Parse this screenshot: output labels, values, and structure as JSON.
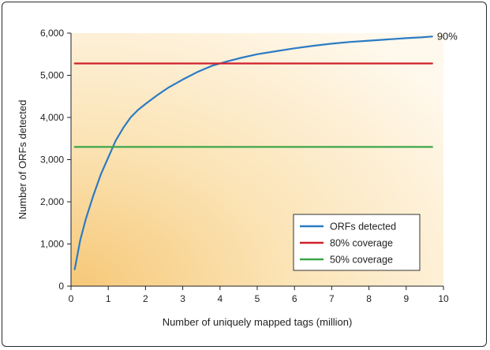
{
  "chart_data": {
    "type": "line",
    "title": "",
    "xlabel": "Number of uniquely mapped tags (million)",
    "ylabel": "Number of ORFs detected",
    "xlim": [
      0,
      10
    ],
    "ylim": [
      0,
      6000
    ],
    "x_ticks": [
      0,
      1,
      2,
      3,
      4,
      5,
      6,
      7,
      8,
      9,
      10
    ],
    "y_ticks": [
      0,
      1000,
      2000,
      3000,
      4000,
      5000,
      6000
    ],
    "x_tick_labels": [
      "0",
      "1",
      "2",
      "3",
      "4",
      "5",
      "6",
      "7",
      "8",
      "9",
      "10"
    ],
    "y_tick_labels": [
      "0",
      "1,000",
      "2,000",
      "3,000",
      "4,000",
      "5,000",
      "6,000"
    ],
    "grid": false,
    "legend_position": "bottom-right",
    "series": [
      {
        "name": "ORFs detected",
        "color": "#2b7bc4",
        "x": [
          0.1,
          0.25,
          0.4,
          0.6,
          0.8,
          1.0,
          1.2,
          1.4,
          1.6,
          1.8,
          2.0,
          2.3,
          2.6,
          3.0,
          3.4,
          3.8,
          4.2,
          4.6,
          5.0,
          5.5,
          6.0,
          6.5,
          7.0,
          7.5,
          8.0,
          8.5,
          9.0,
          9.4,
          9.7
        ],
        "y": [
          400,
          1100,
          1600,
          2150,
          2650,
          3050,
          3450,
          3750,
          4000,
          4180,
          4320,
          4520,
          4700,
          4900,
          5080,
          5230,
          5330,
          5420,
          5500,
          5570,
          5640,
          5700,
          5750,
          5790,
          5820,
          5850,
          5880,
          5900,
          5920
        ]
      },
      {
        "name": "80% coverage",
        "color": "#d0202a",
        "x": [
          0.1,
          9.7
        ],
        "y": [
          5280,
          5280
        ]
      },
      {
        "name": "50% coverage",
        "color": "#3ca64a",
        "x": [
          0.1,
          9.7
        ],
        "y": [
          3300,
          3300
        ]
      }
    ],
    "annotations": [
      {
        "text": "90%",
        "x": 9.7,
        "y": 5920
      }
    ]
  }
}
